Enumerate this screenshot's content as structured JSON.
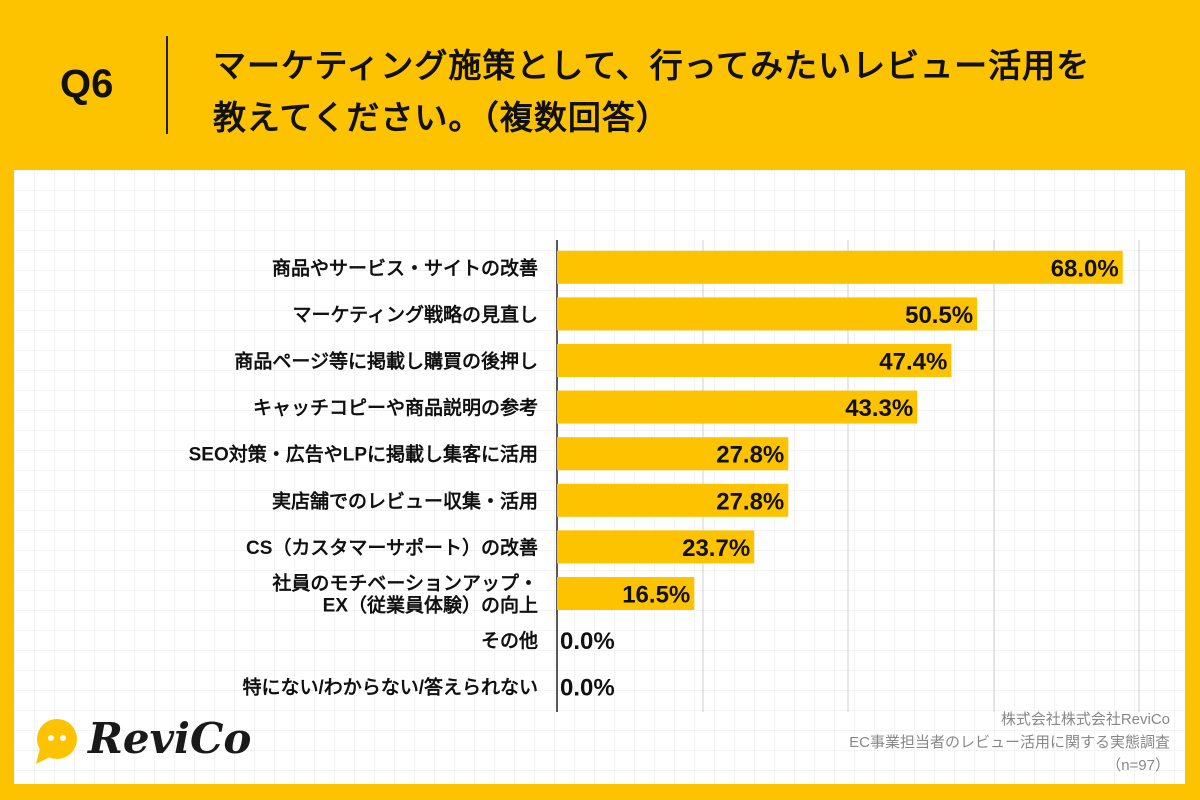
{
  "header": {
    "question_no": "Q6",
    "title_line1": "マーケティング施策として、行ってみたいレビュー活用を",
    "title_line2": "教えてください。（複数回答）"
  },
  "chart_data": {
    "type": "bar",
    "orientation": "horizontal",
    "categories": [
      [
        "商品やサービス・サイトの改善"
      ],
      [
        "マーケティング戦略の見直し"
      ],
      [
        "商品ページ等に掲載し購買の後押し"
      ],
      [
        "キャッチコピーや商品説明の参考"
      ],
      [
        "SEO対策・広告やLPに掲載し集客に活用"
      ],
      [
        "実店舗でのレビュー収集・活用"
      ],
      [
        "CS（カスタマーサポート）の改善"
      ],
      [
        "社員のモチベーションアップ・",
        "EX（従業員体験）の向上"
      ],
      [
        "その他"
      ],
      [
        "特にない/わからない/答えられない"
      ]
    ],
    "values": [
      68.0,
      50.5,
      47.4,
      43.3,
      27.8,
      27.8,
      23.7,
      16.5,
      0.0,
      0.0
    ],
    "data_labels": [
      "68.0%",
      "50.5%",
      "47.4%",
      "43.3%",
      "27.8%",
      "27.8%",
      "23.7%",
      "16.5%",
      "0.0%",
      "0.0%"
    ],
    "unit": "%",
    "grid": true,
    "bar_color": "#FDC300"
  },
  "source": {
    "line1": "株式会社株式会社ReviCo",
    "line2": "EC事業担当者のレビュー活用に関する実態調査",
    "line3": "（n=97）"
  },
  "logo": {
    "text": "ReviCo",
    "color": "#FDC300"
  }
}
